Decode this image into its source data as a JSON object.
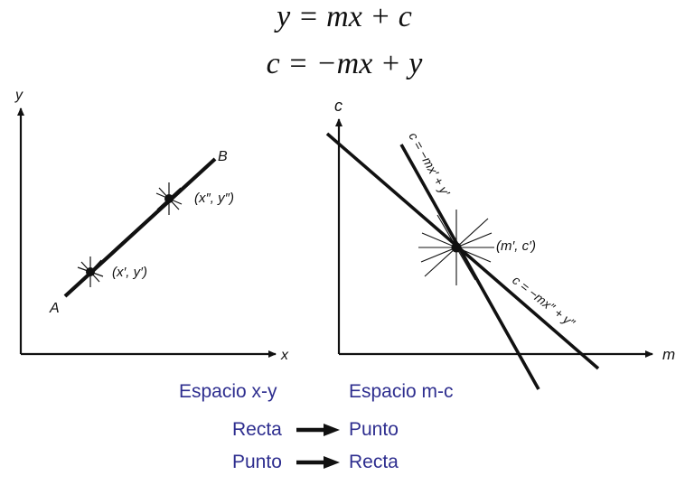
{
  "equations": {
    "eq1": "y = mx + c",
    "eq2": "c = −mx + y"
  },
  "xy_space": {
    "y_axis_label": "y",
    "x_axis_label": "x",
    "point_a_label": "A",
    "point_b_label": "B",
    "point1_label": "(x′, y′)",
    "point2_label": "(x″, y″)",
    "caption": "Espacio x-y"
  },
  "mc_space": {
    "c_axis_label": "c",
    "m_axis_label": "m",
    "intersection_label": "(m′, c′)",
    "line1_label": "c = −mx′ + y′",
    "line2_label": "c = −mx″ + y″",
    "caption": "Espacio m-c"
  },
  "mapping": {
    "row1_from": "Recta",
    "row1_to": "Punto",
    "row2_from": "Punto",
    "row2_to": "Recta"
  },
  "colors": {
    "caption_text": "#2e2e8f",
    "line": "#111111"
  }
}
